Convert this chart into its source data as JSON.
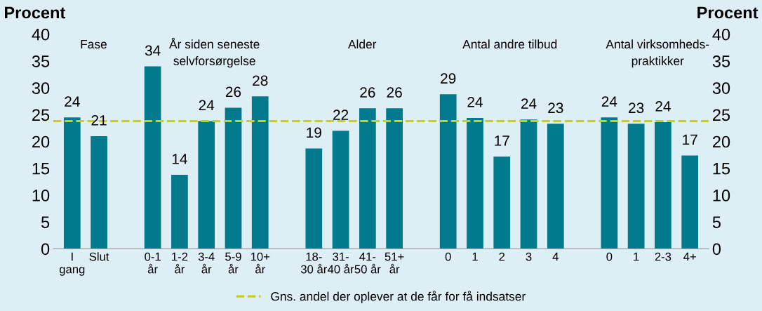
{
  "chart_data": {
    "type": "bar",
    "categories": [
      "I\ngang",
      "Slut",
      null,
      "0-1\når",
      "1-2\når",
      "3-4\når",
      "5-9\når",
      "10+\når",
      null,
      "18-\n30 år",
      "31-\n40 år",
      "41-\n50 år",
      "51+\når",
      null,
      "0",
      "1",
      "2",
      "3",
      "4",
      null,
      "0",
      "1",
      "2-3",
      "4+"
    ],
    "series": [
      {
        "color": "#007a8c",
        "values": [
          24.5,
          21.0,
          null,
          34.0,
          13.8,
          23.8,
          26.3,
          28.4,
          null,
          18.7,
          22.0,
          26.2,
          26.2,
          null,
          28.8,
          24.4,
          17.2,
          24.1,
          23.3,
          null,
          24.5,
          23.3,
          23.6,
          17.4
        ],
        "value_labels": [
          "24",
          "21",
          null,
          "34",
          "14",
          "24",
          "26",
          "28",
          null,
          "19",
          "22",
          "26",
          "26",
          null,
          "29",
          "24",
          "17",
          "24",
          "23",
          null,
          "24",
          "23",
          "24",
          "17"
        ]
      }
    ],
    "ylabel": "Procent",
    "y2label": "Procent",
    "ylim": [
      0,
      40
    ],
    "yticks": [
      0,
      5,
      10,
      15,
      20,
      25,
      30,
      35,
      40
    ],
    "y2lim": [
      0,
      40
    ],
    "y2ticks": [
      0,
      5,
      10,
      15,
      20,
      25,
      30,
      35,
      40
    ],
    "annotations": [
      "Fase",
      "År siden seneste\nselvforsørgelse",
      "Alder",
      "Antal andre tilbud",
      "Antal virksomheds-\npraktikker"
    ],
    "ref_lines": [
      {
        "axis": "y",
        "value": 23.8,
        "label": "Gns. andel der oplever at de får for få indsatser",
        "color": "#c8d400",
        "line_style": "dashed"
      }
    ],
    "legend": "bottom",
    "grid": false
  }
}
